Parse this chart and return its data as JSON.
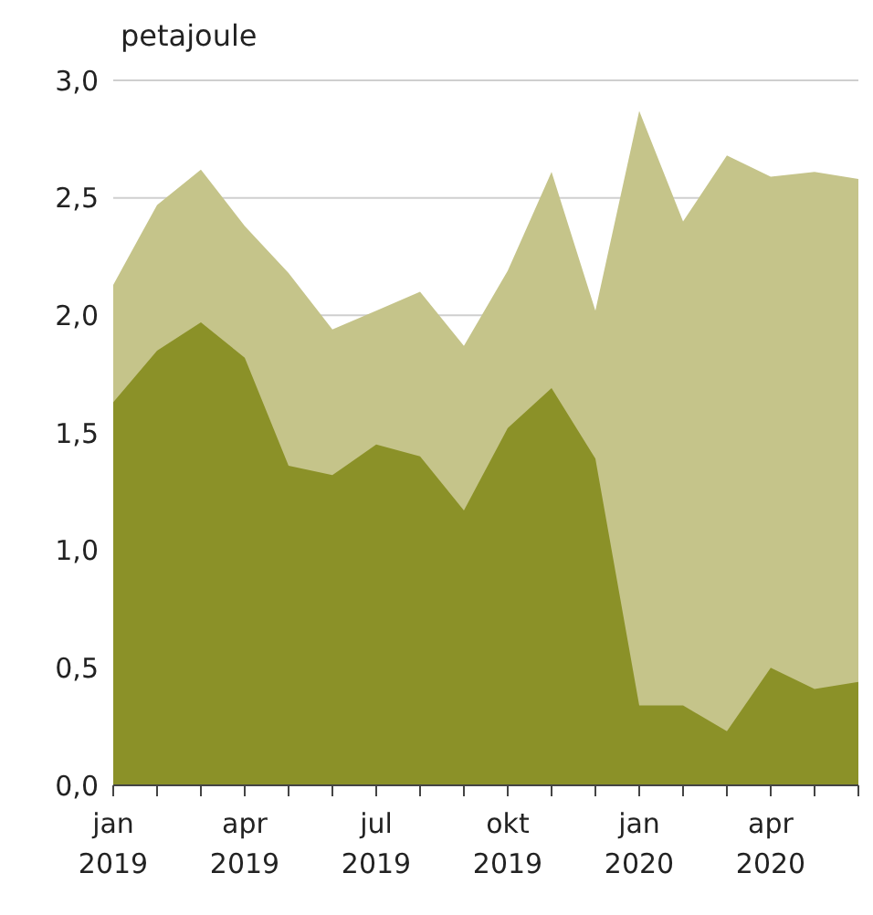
{
  "chart_data": {
    "type": "area",
    "ylabel": "petajoule",
    "categories": [
      "jan 2019",
      null,
      null,
      "apr 2019",
      null,
      null,
      "jul 2019",
      null,
      null,
      "okt 2019",
      null,
      null,
      "jan 2020",
      null,
      null,
      "apr 2020",
      null,
      null
    ],
    "series": [
      {
        "color": "#c5c48a",
        "values": [
          2.13,
          2.47,
          2.62,
          2.38,
          2.18,
          1.94,
          2.02,
          2.1,
          1.87,
          2.19,
          2.61,
          2.02,
          2.87,
          2.4,
          2.68,
          2.59,
          2.61,
          2.58
        ]
      },
      {
        "color": "#8b9128",
        "values": [
          1.63,
          1.85,
          1.97,
          1.82,
          1.36,
          1.32,
          1.45,
          1.4,
          1.17,
          1.52,
          1.69,
          1.39,
          0.34,
          0.34,
          0.23,
          0.5,
          0.41,
          0.44
        ]
      }
    ],
    "ylim": [
      0,
      3
    ],
    "yticks": [
      {
        "value": 0,
        "label": "0,0"
      },
      {
        "value": 0.5,
        "label": "0,5"
      },
      {
        "value": 1,
        "label": "1,0"
      },
      {
        "value": 1.5,
        "label": "1,5"
      },
      {
        "value": 2,
        "label": "2,0"
      },
      {
        "value": 2.5,
        "label": "2,5"
      },
      {
        "value": 3,
        "label": "3,0"
      }
    ],
    "grid": "y"
  }
}
